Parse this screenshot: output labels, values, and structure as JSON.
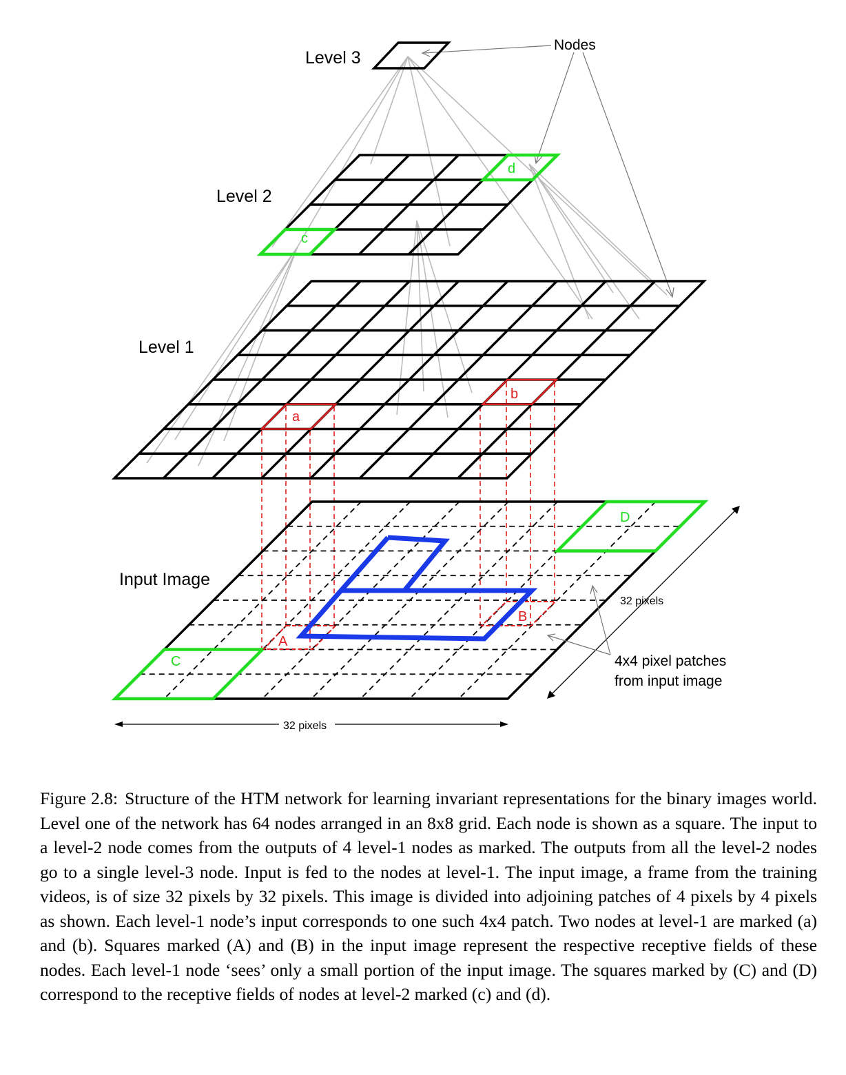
{
  "figure": {
    "labels": {
      "level3": "Level 3",
      "level2": "Level 2",
      "level1": "Level 1",
      "input_image": "Input Image",
      "nodes": "Nodes",
      "pixels_right": "32 pixels",
      "pixels_bottom": "32 pixels",
      "patches_line1": "4x4 pixel patches",
      "patches_line2": "from input image"
    },
    "markers": {
      "a": "a",
      "b": "b",
      "c": "c",
      "d": "d",
      "A": "A",
      "B": "B",
      "C": "C",
      "D": "D"
    },
    "grids": {
      "level1": "8x8",
      "level2": "4x4",
      "level3": "1x1",
      "input_image": "8x8"
    },
    "colors": {
      "grid": "#000000",
      "connection": "#bbbbbb",
      "receptive_green": "#22dd22",
      "receptive_red": "#e02020",
      "shape_blue": "#1a3ae8"
    }
  },
  "caption": {
    "label": "Figure 2.8:",
    "text": "Structure of the HTM network for learning invariant representations for the binary images world. Level one of the network has 64 nodes arranged in an 8x8 grid. Each node is shown as a square. The input to a level-2 node comes from the outputs of 4 level-1 nodes as marked. The outputs from all the level-2 nodes go to a single level-3 node. Input is fed to the nodes at level-1. The input image, a frame from the training videos, is of size 32 pixels by 32 pixels. This image is divided into adjoining patches of 4 pixels by 4 pixels as shown. Each level-1 node’s input corresponds to one such 4x4 patch. Two nodes at level-1 are marked (a) and (b). Squares marked (A) and (B) in the input image represent the respective receptive fields of these nodes. Each level-1 node ‘sees’ only a small portion of the input image. The squares marked by (C) and (D) correspond to the receptive fields of nodes at level-2 marked (c) and (d)."
  }
}
